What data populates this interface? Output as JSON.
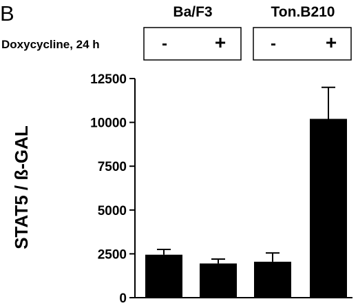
{
  "panel_label": "B",
  "treatment_label": "Doxycycline, 24 h",
  "groups": [
    {
      "name": "Ba/F3",
      "conditions": [
        "-",
        "+"
      ]
    },
    {
      "name": "Ton.B210",
      "conditions": [
        "-",
        "+"
      ]
    }
  ],
  "chart_data": {
    "type": "bar",
    "categories": [
      "Ba/F3 -",
      "Ba/F3 +",
      "Ton.B210 -",
      "Ton.B210 +"
    ],
    "values": [
      2450,
      1950,
      2050,
      10200
    ],
    "errors": [
      300,
      250,
      500,
      1800
    ],
    "ylabel": "STAT5 / ß-GAL",
    "ylim": [
      0,
      12500
    ],
    "yticks": [
      0,
      2500,
      5000,
      7500,
      10000,
      12500
    ],
    "ytick_labels": [
      "0",
      "2500",
      "5000",
      "7500",
      "10000",
      "12500"
    ],
    "grid": false,
    "bar_color": "#000000"
  }
}
